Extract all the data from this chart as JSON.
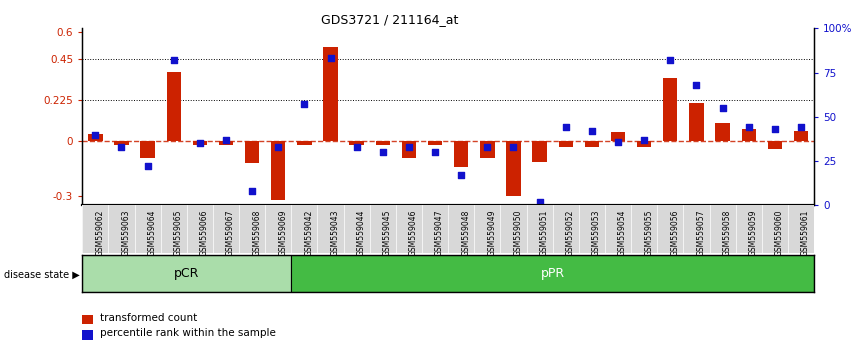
{
  "title": "GDS3721 / 211164_at",
  "samples": [
    "GSM559062",
    "GSM559063",
    "GSM559064",
    "GSM559065",
    "GSM559066",
    "GSM559067",
    "GSM559068",
    "GSM559069",
    "GSM559042",
    "GSM559043",
    "GSM559044",
    "GSM559045",
    "GSM559046",
    "GSM559047",
    "GSM559048",
    "GSM559049",
    "GSM559050",
    "GSM559051",
    "GSM559052",
    "GSM559053",
    "GSM559054",
    "GSM559055",
    "GSM559056",
    "GSM559057",
    "GSM559058",
    "GSM559059",
    "GSM559060",
    "GSM559061"
  ],
  "red_values": [
    0.04,
    -0.02,
    -0.09,
    0.38,
    -0.02,
    -0.02,
    -0.12,
    -0.32,
    -0.02,
    0.52,
    -0.02,
    -0.02,
    -0.09,
    -0.02,
    -0.14,
    -0.09,
    -0.3,
    -0.11,
    -0.03,
    -0.03,
    0.05,
    -0.03,
    0.35,
    0.21,
    0.1,
    0.07,
    -0.04,
    0.06
  ],
  "blue_pct": [
    40,
    33,
    22,
    82,
    35,
    37,
    8,
    33,
    57,
    83,
    33,
    30,
    33,
    30,
    17,
    33,
    33,
    2,
    44,
    42,
    36,
    37,
    82,
    68,
    55,
    44,
    43,
    44
  ],
  "pCR_count": 8,
  "pPR_count": 20,
  "ylim_left": [
    -0.35,
    0.62
  ],
  "ylim_right": [
    0,
    100
  ],
  "yticks_left": [
    -0.3,
    0.0,
    0.225,
    0.45,
    0.6
  ],
  "ytick_left_labels": [
    "-0.3",
    "0",
    "0.225",
    "0.45",
    "0.6"
  ],
  "yticks_right_pct": [
    0,
    25,
    50,
    75,
    100
  ],
  "ytick_right_labels": [
    "0",
    "25",
    "50",
    "75",
    "100%"
  ],
  "hline_dotted": [
    0.225,
    0.45
  ],
  "zero_line_color": "#cc2200",
  "bar_color": "#cc2200",
  "dot_color": "#1111cc",
  "pCR_color": "#aaddaa",
  "pPR_color": "#44bb44",
  "bar_width": 0.55,
  "legend_red_label": "transformed count",
  "legend_blue_label": "percentile rank within the sample",
  "disease_state_label": "disease state"
}
